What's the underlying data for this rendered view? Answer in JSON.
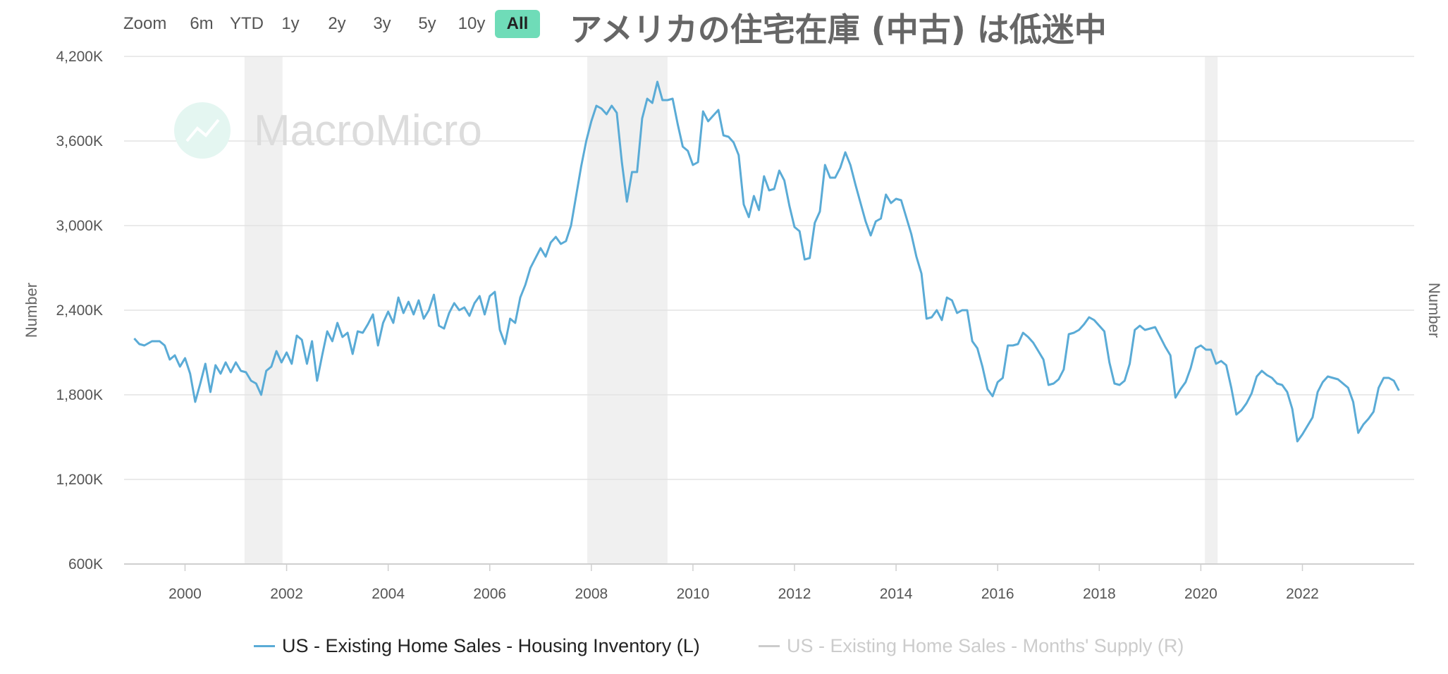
{
  "toolbar": {
    "zoom_label": "Zoom",
    "ranges": [
      "6m",
      "YTD",
      "1y",
      "2y",
      "3y",
      "5y",
      "10y",
      "All"
    ],
    "active_range": "All"
  },
  "title": "アメリカの住宅在庫 (中古) は低迷中",
  "watermark": {
    "brand": "MacroMicro"
  },
  "colors": {
    "series": "#5aabd6",
    "accent": "#6fdcb8",
    "grid": "#e3e3e3",
    "recession": "#f0f0f0",
    "inactive": "#cccccc"
  },
  "legend": [
    {
      "label": "US - Existing Home Sales - Housing Inventory (L)",
      "color": "#5aabd6",
      "active": true
    },
    {
      "label": "US - Existing Home Sales - Months' Supply (R)",
      "color": "#cccccc",
      "active": false
    }
  ],
  "chart_data": {
    "type": "line",
    "title": "アメリカの住宅在庫 (中古) は低迷中",
    "ylabel_left": "Number",
    "ylabel_right": "Number",
    "ylim": [
      600000,
      4200000
    ],
    "yticks": [
      600000,
      1200000,
      1800000,
      2400000,
      3000000,
      3600000,
      4200000
    ],
    "ytick_labels": [
      "600K",
      "1,200K",
      "1,800K",
      "2,400K",
      "3,000K",
      "3,600K",
      "4,200K"
    ],
    "xlim": [
      1998.8,
      2024.2
    ],
    "xticks": [
      2000,
      2002,
      2004,
      2006,
      2008,
      2010,
      2012,
      2014,
      2016,
      2018,
      2020,
      2022
    ],
    "xtick_labels": [
      "2000",
      "2002",
      "2004",
      "2006",
      "2008",
      "2010",
      "2012",
      "2014",
      "2016",
      "2018",
      "2020",
      "2022"
    ],
    "grid": true,
    "legend_position": "bottom",
    "recessions": [
      [
        2001.17,
        2001.92
      ],
      [
        2007.92,
        2009.5
      ],
      [
        2020.08,
        2020.33
      ]
    ],
    "series": [
      {
        "name": "US - Existing Home Sales - Housing Inventory (L)",
        "points": [
          [
            1999.0,
            2200000
          ],
          [
            1999.1,
            2160000
          ],
          [
            1999.2,
            2150000
          ],
          [
            1999.35,
            2180000
          ],
          [
            1999.5,
            2180000
          ],
          [
            1999.6,
            2150000
          ],
          [
            1999.7,
            2050000
          ],
          [
            1999.8,
            2080000
          ],
          [
            1999.9,
            2000000
          ],
          [
            2000.0,
            2060000
          ],
          [
            2000.1,
            1950000
          ],
          [
            2000.2,
            1750000
          ],
          [
            2000.3,
            1880000
          ],
          [
            2000.4,
            2020000
          ],
          [
            2000.5,
            1820000
          ],
          [
            2000.6,
            2010000
          ],
          [
            2000.7,
            1950000
          ],
          [
            2000.8,
            2030000
          ],
          [
            2000.9,
            1960000
          ],
          [
            2001.0,
            2030000
          ],
          [
            2001.1,
            1970000
          ],
          [
            2001.2,
            1960000
          ],
          [
            2001.3,
            1900000
          ],
          [
            2001.4,
            1880000
          ],
          [
            2001.5,
            1800000
          ],
          [
            2001.6,
            1970000
          ],
          [
            2001.7,
            2000000
          ],
          [
            2001.8,
            2110000
          ],
          [
            2001.9,
            2030000
          ],
          [
            2002.0,
            2100000
          ],
          [
            2002.1,
            2020000
          ],
          [
            2002.2,
            2220000
          ],
          [
            2002.3,
            2190000
          ],
          [
            2002.4,
            2020000
          ],
          [
            2002.5,
            2180000
          ],
          [
            2002.6,
            1900000
          ],
          [
            2002.7,
            2080000
          ],
          [
            2002.8,
            2250000
          ],
          [
            2002.9,
            2180000
          ],
          [
            2003.0,
            2310000
          ],
          [
            2003.1,
            2210000
          ],
          [
            2003.2,
            2240000
          ],
          [
            2003.3,
            2090000
          ],
          [
            2003.4,
            2250000
          ],
          [
            2003.5,
            2240000
          ],
          [
            2003.6,
            2300000
          ],
          [
            2003.7,
            2370000
          ],
          [
            2003.8,
            2150000
          ],
          [
            2003.9,
            2310000
          ],
          [
            2004.0,
            2390000
          ],
          [
            2004.1,
            2310000
          ],
          [
            2004.2,
            2490000
          ],
          [
            2004.3,
            2380000
          ],
          [
            2004.4,
            2460000
          ],
          [
            2004.5,
            2370000
          ],
          [
            2004.6,
            2470000
          ],
          [
            2004.7,
            2340000
          ],
          [
            2004.8,
            2400000
          ],
          [
            2004.9,
            2510000
          ],
          [
            2005.0,
            2290000
          ],
          [
            2005.1,
            2270000
          ],
          [
            2005.2,
            2380000
          ],
          [
            2005.3,
            2450000
          ],
          [
            2005.4,
            2400000
          ],
          [
            2005.5,
            2420000
          ],
          [
            2005.6,
            2360000
          ],
          [
            2005.7,
            2450000
          ],
          [
            2005.8,
            2500000
          ],
          [
            2005.9,
            2370000
          ],
          [
            2006.0,
            2500000
          ],
          [
            2006.1,
            2530000
          ],
          [
            2006.2,
            2260000
          ],
          [
            2006.3,
            2160000
          ],
          [
            2006.4,
            2340000
          ],
          [
            2006.5,
            2310000
          ],
          [
            2006.6,
            2490000
          ],
          [
            2006.7,
            2580000
          ],
          [
            2006.8,
            2700000
          ],
          [
            2006.9,
            2770000
          ],
          [
            2007.0,
            2840000
          ],
          [
            2007.1,
            2780000
          ],
          [
            2007.2,
            2880000
          ],
          [
            2007.3,
            2920000
          ],
          [
            2007.4,
            2870000
          ],
          [
            2007.5,
            2890000
          ],
          [
            2007.6,
            3000000
          ],
          [
            2007.7,
            3210000
          ],
          [
            2007.8,
            3420000
          ],
          [
            2007.9,
            3600000
          ],
          [
            2008.0,
            3740000
          ],
          [
            2008.1,
            3850000
          ],
          [
            2008.2,
            3830000
          ],
          [
            2008.3,
            3790000
          ],
          [
            2008.4,
            3850000
          ],
          [
            2008.5,
            3800000
          ],
          [
            2008.6,
            3450000
          ],
          [
            2008.7,
            3170000
          ],
          [
            2008.8,
            3380000
          ],
          [
            2008.9,
            3380000
          ],
          [
            2009.0,
            3760000
          ],
          [
            2009.1,
            3900000
          ],
          [
            2009.2,
            3870000
          ],
          [
            2009.3,
            4020000
          ],
          [
            2009.4,
            3890000
          ],
          [
            2009.5,
            3890000
          ],
          [
            2009.6,
            3900000
          ],
          [
            2009.7,
            3720000
          ],
          [
            2009.8,
            3560000
          ],
          [
            2009.9,
            3530000
          ],
          [
            2010.0,
            3430000
          ],
          [
            2010.1,
            3450000
          ],
          [
            2010.2,
            3810000
          ],
          [
            2010.3,
            3740000
          ],
          [
            2010.4,
            3780000
          ],
          [
            2010.5,
            3820000
          ],
          [
            2010.6,
            3640000
          ],
          [
            2010.7,
            3630000
          ],
          [
            2010.8,
            3590000
          ],
          [
            2010.9,
            3500000
          ],
          [
            2011.0,
            3150000
          ],
          [
            2011.1,
            3060000
          ],
          [
            2011.2,
            3210000
          ],
          [
            2011.3,
            3110000
          ],
          [
            2011.4,
            3350000
          ],
          [
            2011.5,
            3250000
          ],
          [
            2011.6,
            3260000
          ],
          [
            2011.7,
            3390000
          ],
          [
            2011.8,
            3320000
          ],
          [
            2011.9,
            3140000
          ],
          [
            2012.0,
            2990000
          ],
          [
            2012.1,
            2960000
          ],
          [
            2012.2,
            2760000
          ],
          [
            2012.3,
            2770000
          ],
          [
            2012.4,
            3020000
          ],
          [
            2012.5,
            3100000
          ],
          [
            2012.6,
            3430000
          ],
          [
            2012.7,
            3340000
          ],
          [
            2012.8,
            3340000
          ],
          [
            2012.9,
            3410000
          ],
          [
            2013.0,
            3520000
          ],
          [
            2013.1,
            3430000
          ],
          [
            2013.2,
            3290000
          ],
          [
            2013.3,
            3160000
          ],
          [
            2013.4,
            3030000
          ],
          [
            2013.5,
            2930000
          ],
          [
            2013.6,
            3030000
          ],
          [
            2013.7,
            3050000
          ],
          [
            2013.8,
            3220000
          ],
          [
            2013.9,
            3160000
          ],
          [
            2014.0,
            3190000
          ],
          [
            2014.1,
            3180000
          ],
          [
            2014.2,
            3060000
          ],
          [
            2014.3,
            2940000
          ],
          [
            2014.4,
            2780000
          ],
          [
            2014.5,
            2660000
          ],
          [
            2014.6,
            2340000
          ],
          [
            2014.7,
            2350000
          ],
          [
            2014.8,
            2400000
          ],
          [
            2014.9,
            2330000
          ],
          [
            2015.0,
            2490000
          ],
          [
            2015.1,
            2470000
          ],
          [
            2015.2,
            2380000
          ],
          [
            2015.3,
            2400000
          ],
          [
            2015.4,
            2400000
          ],
          [
            2015.5,
            2180000
          ],
          [
            2015.6,
            2130000
          ],
          [
            2015.7,
            2000000
          ],
          [
            2015.8,
            1840000
          ],
          [
            2015.9,
            1790000
          ],
          [
            2016.0,
            1890000
          ],
          [
            2016.1,
            1920000
          ],
          [
            2016.2,
            2150000
          ],
          [
            2016.3,
            2150000
          ],
          [
            2016.4,
            2160000
          ],
          [
            2016.5,
            2240000
          ],
          [
            2016.6,
            2210000
          ],
          [
            2016.7,
            2170000
          ],
          [
            2016.8,
            2110000
          ],
          [
            2016.9,
            2050000
          ],
          [
            2017.0,
            1870000
          ],
          [
            2017.1,
            1880000
          ],
          [
            2017.2,
            1910000
          ],
          [
            2017.3,
            1980000
          ],
          [
            2017.4,
            2230000
          ],
          [
            2017.5,
            2240000
          ],
          [
            2017.6,
            2260000
          ],
          [
            2017.7,
            2300000
          ],
          [
            2017.8,
            2350000
          ],
          [
            2017.9,
            2330000
          ],
          [
            2018.0,
            2290000
          ],
          [
            2018.1,
            2250000
          ],
          [
            2018.2,
            2030000
          ],
          [
            2018.3,
            1880000
          ],
          [
            2018.4,
            1870000
          ],
          [
            2018.5,
            1900000
          ],
          [
            2018.6,
            2020000
          ],
          [
            2018.7,
            2260000
          ],
          [
            2018.8,
            2290000
          ],
          [
            2018.9,
            2260000
          ],
          [
            2019.0,
            2270000
          ],
          [
            2019.1,
            2280000
          ],
          [
            2019.2,
            2210000
          ],
          [
            2019.3,
            2140000
          ],
          [
            2019.4,
            2080000
          ],
          [
            2019.5,
            1780000
          ],
          [
            2019.6,
            1840000
          ],
          [
            2019.7,
            1890000
          ],
          [
            2019.8,
            1990000
          ],
          [
            2019.9,
            2130000
          ],
          [
            2020.0,
            2150000
          ],
          [
            2020.1,
            2120000
          ],
          [
            2020.2,
            2120000
          ],
          [
            2020.3,
            2020000
          ],
          [
            2020.4,
            2040000
          ],
          [
            2020.5,
            2010000
          ],
          [
            2020.6,
            1850000
          ],
          [
            2020.7,
            1660000
          ],
          [
            2020.8,
            1690000
          ],
          [
            2020.9,
            1740000
          ],
          [
            2021.0,
            1810000
          ],
          [
            2021.1,
            1930000
          ],
          [
            2021.2,
            1970000
          ],
          [
            2021.3,
            1940000
          ],
          [
            2021.4,
            1920000
          ],
          [
            2021.5,
            1880000
          ],
          [
            2021.6,
            1870000
          ],
          [
            2021.7,
            1820000
          ],
          [
            2021.8,
            1700000
          ],
          [
            2021.9,
            1470000
          ],
          [
            2022.0,
            1520000
          ],
          [
            2022.1,
            1580000
          ],
          [
            2022.2,
            1640000
          ],
          [
            2022.3,
            1820000
          ],
          [
            2022.4,
            1890000
          ],
          [
            2022.5,
            1930000
          ],
          [
            2022.6,
            1920000
          ],
          [
            2022.7,
            1910000
          ],
          [
            2022.8,
            1880000
          ],
          [
            2022.9,
            1850000
          ],
          [
            2023.0,
            1750000
          ],
          [
            2023.1,
            1530000
          ],
          [
            2023.2,
            1590000
          ],
          [
            2023.3,
            1630000
          ],
          [
            2023.4,
            1680000
          ],
          [
            2023.5,
            1850000
          ],
          [
            2023.6,
            1920000
          ],
          [
            2023.7,
            1920000
          ],
          [
            2023.8,
            1900000
          ],
          [
            2023.9,
            1830000
          ]
        ]
      }
    ]
  }
}
